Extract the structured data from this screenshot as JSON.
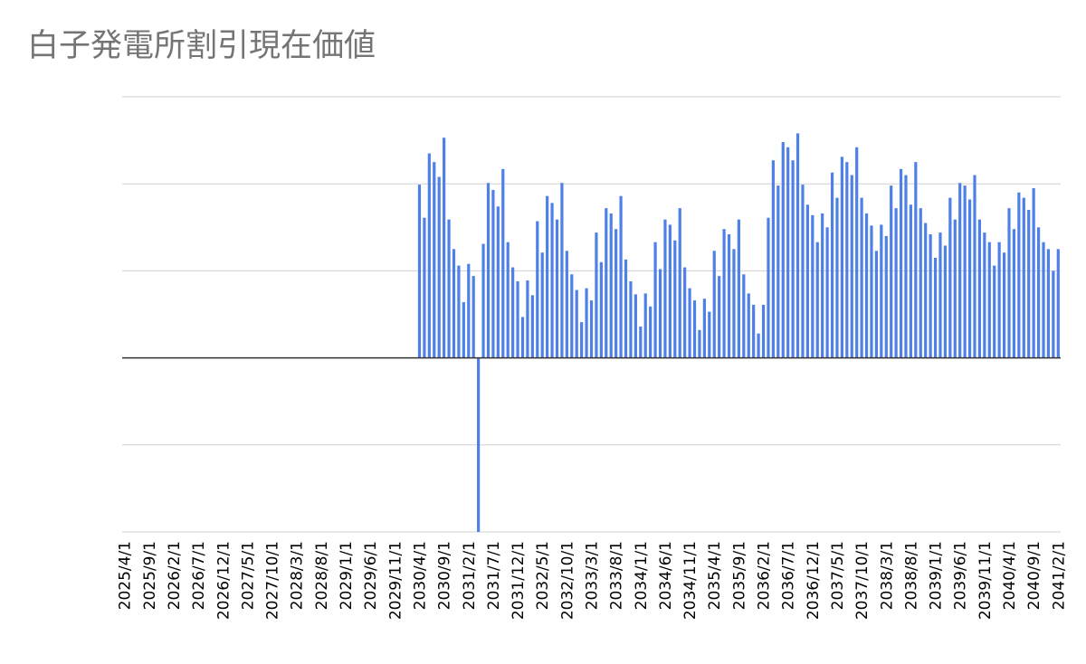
{
  "chart_data": {
    "type": "bar",
    "title": "白子発電所割引現在価値",
    "categories": [
      "2025/4/1",
      null,
      null,
      null,
      null,
      "2025/9/1",
      null,
      null,
      null,
      null,
      "2026/2/1",
      null,
      null,
      null,
      null,
      "2026/7/1",
      null,
      null,
      null,
      null,
      "2026/12/1",
      null,
      null,
      null,
      null,
      "2027/5/1",
      null,
      null,
      null,
      null,
      "2027/10/1",
      null,
      null,
      null,
      null,
      "2028/3/1",
      null,
      null,
      null,
      null,
      "2028/8/1",
      null,
      null,
      null,
      null,
      "2029/1/1",
      null,
      null,
      null,
      null,
      "2029/6/1",
      null,
      null,
      null,
      null,
      "2029/11/1",
      null,
      null,
      null,
      null,
      "2030/4/1",
      null,
      null,
      null,
      null,
      "2030/9/1",
      null,
      null,
      null,
      null,
      "2031/2/1",
      null,
      null,
      null,
      null,
      "2031/7/1",
      null,
      null,
      null,
      null,
      "2031/12/1",
      null,
      null,
      null,
      null,
      "2032/5/1",
      null,
      null,
      null,
      null,
      "2032/10/1",
      null,
      null,
      null,
      null,
      "2033/3/1",
      null,
      null,
      null,
      null,
      "2033/8/1",
      null,
      null,
      null,
      null,
      "2034/1/1",
      null,
      null,
      null,
      null,
      "2034/6/1",
      null,
      null,
      null,
      null,
      "2034/11/1",
      null,
      null,
      null,
      null,
      "2035/4/1",
      null,
      null,
      null,
      null,
      "2035/9/1",
      null,
      null,
      null,
      null,
      "2036/2/1",
      null,
      null,
      null,
      null,
      "2036/7/1",
      null,
      null,
      null,
      null,
      "2036/12/1",
      null,
      null,
      null,
      null,
      "2037/5/1",
      null,
      null,
      null,
      null,
      "2037/10/1",
      null,
      null,
      null,
      null,
      "2038/3/1",
      null,
      null,
      null,
      null,
      "2038/8/1",
      null,
      null,
      null,
      null,
      "2039/1/1",
      null,
      null,
      null,
      null,
      "2039/6/1",
      null,
      null,
      null,
      null,
      "2039/11/1",
      null,
      null,
      null,
      null,
      "2040/4/1",
      null,
      null,
      null,
      null,
      "2040/9/1",
      null,
      null,
      null,
      null,
      "2041/2/1"
    ],
    "values": [
      0,
      0,
      0,
      0,
      0,
      0,
      0,
      0,
      0,
      0,
      0,
      0,
      0,
      0,
      0,
      0,
      0,
      0,
      0,
      0,
      0,
      0,
      0,
      0,
      0,
      0,
      0,
      0,
      0,
      0,
      0,
      0,
      0,
      0,
      0,
      0,
      0,
      0,
      0,
      0,
      0,
      0,
      0,
      0,
      0,
      0,
      0,
      0,
      0,
      0,
      0,
      0,
      0,
      0,
      0,
      0,
      0,
      0,
      0,
      0,
      1.99,
      1.61,
      2.35,
      2.25,
      2.08,
      2.53,
      1.59,
      1.25,
      1.06,
      0.64,
      1.08,
      0.94,
      -2.0,
      1.31,
      2.01,
      1.93,
      1.74,
      2.17,
      1.33,
      1.04,
      0.88,
      0.47,
      0.89,
      0.72,
      1.57,
      1.21,
      1.86,
      1.78,
      1.59,
      2.01,
      1.23,
      0.96,
      0.78,
      0.41,
      0.8,
      0.66,
      1.44,
      1.1,
      1.72,
      1.66,
      1.48,
      1.86,
      1.13,
      0.88,
      0.73,
      0.36,
      0.74,
      0.59,
      1.33,
      1.02,
      1.59,
      1.53,
      1.35,
      1.72,
      1.04,
      0.8,
      0.66,
      0.32,
      0.68,
      0.53,
      1.23,
      0.94,
      1.48,
      1.42,
      1.25,
      1.59,
      0.96,
      0.74,
      0.61,
      0.28,
      0.61,
      1.61,
      2.27,
      1.98,
      2.48,
      2.42,
      2.27,
      2.58,
      1.99,
      1.76,
      1.64,
      1.33,
      1.66,
      1.5,
      2.13,
      1.84,
      2.31,
      2.25,
      2.1,
      2.42,
      1.84,
      1.66,
      1.52,
      1.23,
      1.53,
      1.4,
      1.98,
      1.72,
      2.17,
      2.1,
      1.76,
      2.25,
      1.72,
      1.55,
      1.42,
      1.15,
      1.44,
      1.29,
      1.84,
      1.59,
      2.01,
      1.98,
      1.82,
      2.1,
      1.59,
      1.44,
      1.33,
      1.06,
      1.33,
      1.21,
      1.72,
      1.48,
      1.9,
      1.84,
      1.7,
      1.95,
      1.5,
      1.33,
      1.25,
      1.0,
      1.25
    ],
    "color": "#4e80e8",
    "ylim": [
      -2,
      3
    ],
    "yticks": [
      -2,
      -1,
      0,
      1,
      2,
      3
    ],
    "grid": true
  }
}
